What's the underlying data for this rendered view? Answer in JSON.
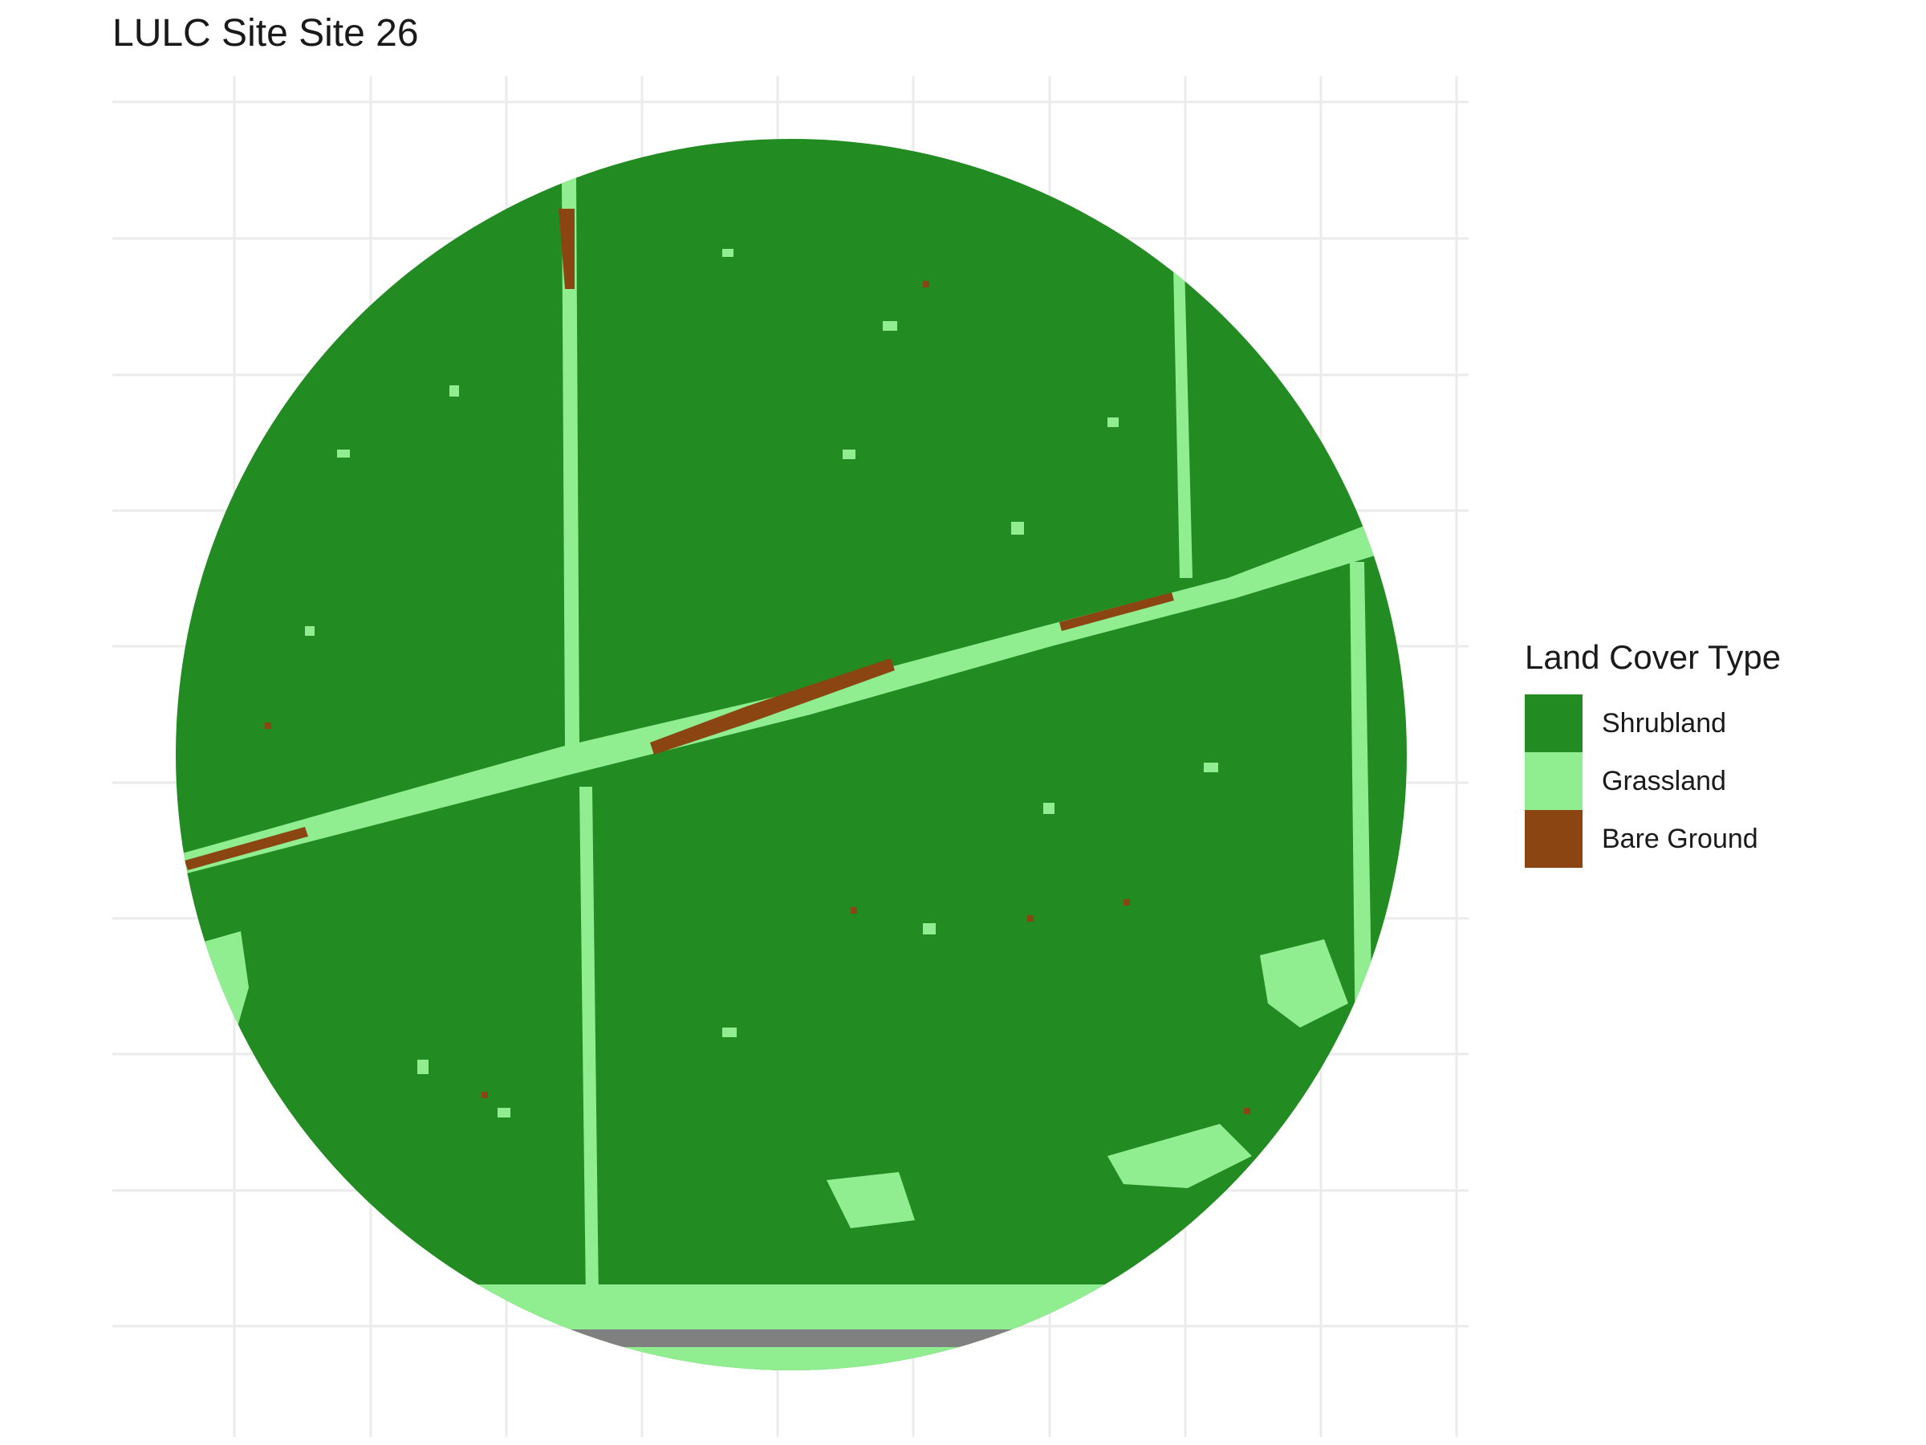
{
  "title": "LULC Site Site 26",
  "legend": {
    "title": "Land Cover Type",
    "items": [
      {
        "label": "Shrubland",
        "color": "#228B22"
      },
      {
        "label": "Grassland",
        "color": "#90EE90"
      },
      {
        "label": "Bare Ground",
        "color": "#8B4513"
      }
    ]
  },
  "colors": {
    "no_data": "#808080",
    "grid": "#EBEBEB",
    "background": "#FFFFFF"
  }
}
